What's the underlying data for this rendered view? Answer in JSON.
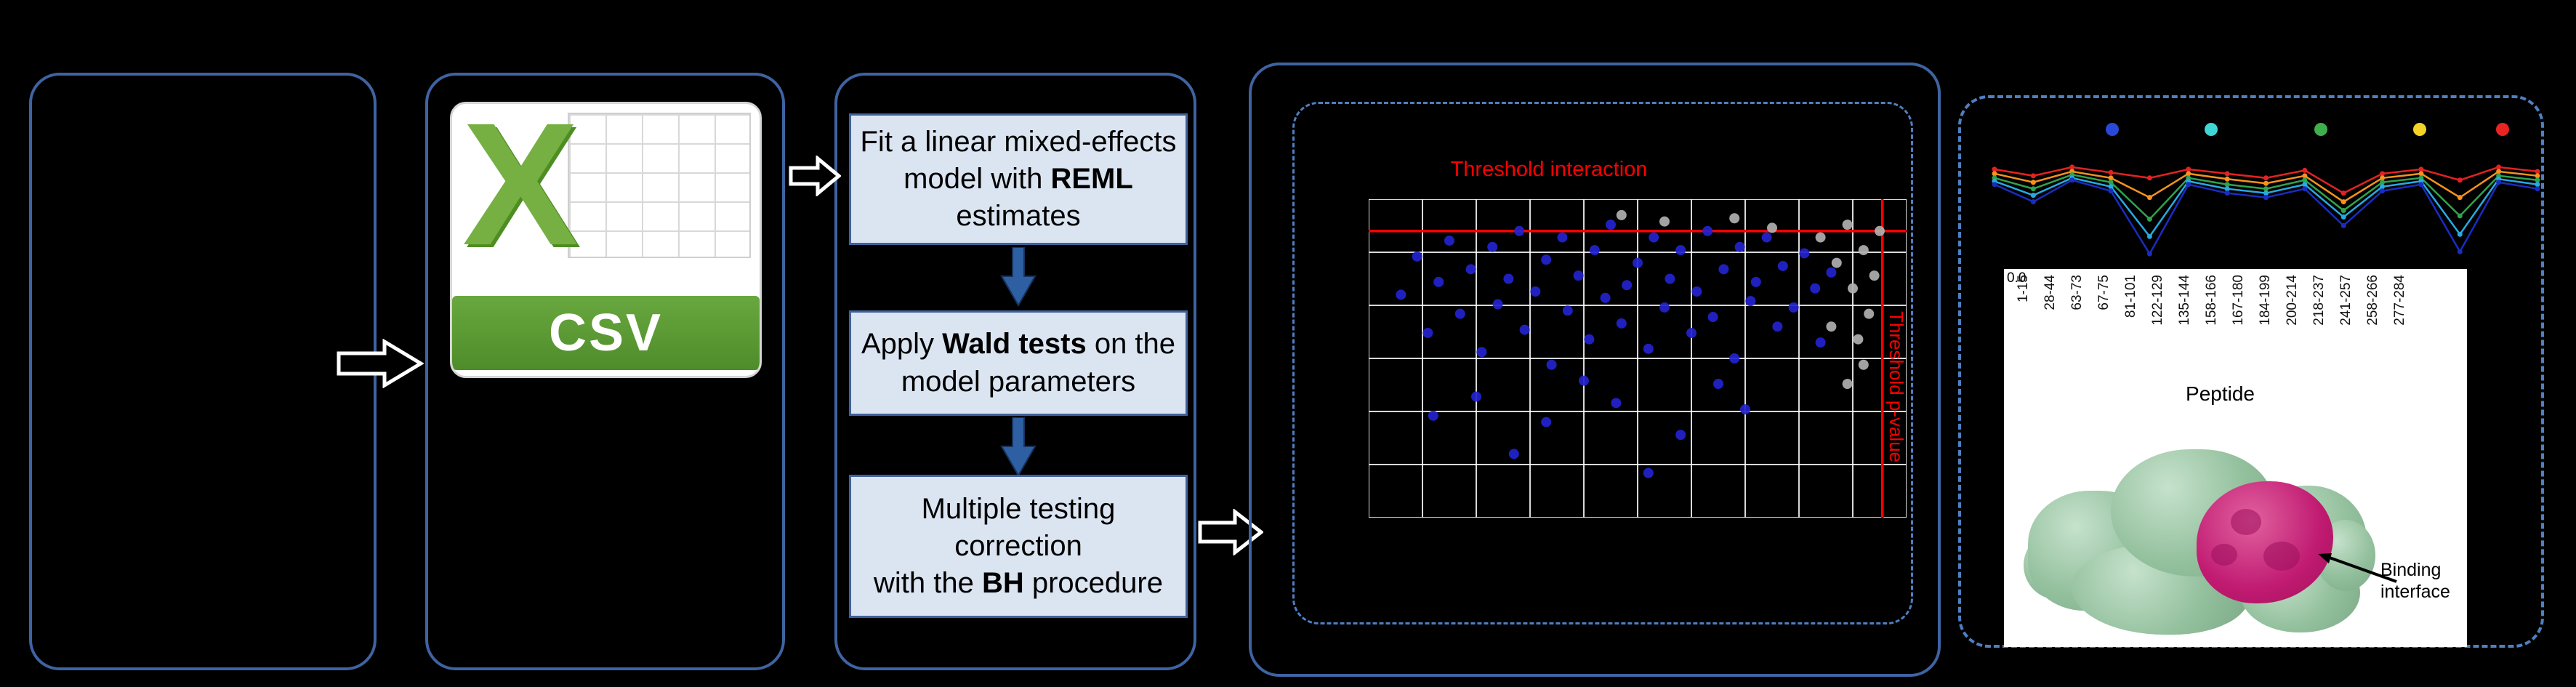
{
  "csv_icon": {
    "letter": "X",
    "label": "CSV"
  },
  "workflow": {
    "steps": [
      {
        "pre": "Fit a linear mixed-effects model with ",
        "bold": "REML",
        "post": " estimates"
      },
      {
        "pre": "Apply ",
        "bold": "Wald tests",
        "post": " on the model parameters"
      },
      {
        "pre": "Multiple testing correction\nwith the ",
        "bold": "BH",
        "post": " procedure"
      }
    ]
  },
  "protein": {
    "binding_label": "Binding interface"
  },
  "chart_data": [
    {
      "type": "scatter",
      "title": "",
      "threshold_h_label": "Threshold interaction",
      "threshold_v_label": "Threshold p-value",
      "threshold_color": "#ff0000",
      "threshold_h_frac": 0.1,
      "threshold_v_frac": 0.955,
      "grid": {
        "cols": 10,
        "rows": 6,
        "color": "#ffffff"
      },
      "series": [
        {
          "name": "significant-points",
          "color": "#2323cf",
          "marker_r": 7,
          "points": [
            [
              0.06,
              0.3
            ],
            [
              0.09,
              0.18
            ],
            [
              0.11,
              0.42
            ],
            [
              0.13,
              0.26
            ],
            [
              0.15,
              0.13
            ],
            [
              0.17,
              0.36
            ],
            [
              0.19,
              0.22
            ],
            [
              0.21,
              0.48
            ],
            [
              0.23,
              0.15
            ],
            [
              0.24,
              0.33
            ],
            [
              0.26,
              0.25
            ],
            [
              0.28,
              0.1
            ],
            [
              0.29,
              0.41
            ],
            [
              0.31,
              0.29
            ],
            [
              0.33,
              0.19
            ],
            [
              0.34,
              0.52
            ],
            [
              0.36,
              0.12
            ],
            [
              0.37,
              0.35
            ],
            [
              0.39,
              0.24
            ],
            [
              0.41,
              0.44
            ],
            [
              0.42,
              0.16
            ],
            [
              0.44,
              0.31
            ],
            [
              0.45,
              0.08
            ],
            [
              0.47,
              0.39
            ],
            [
              0.48,
              0.27
            ],
            [
              0.5,
              0.2
            ],
            [
              0.52,
              0.47
            ],
            [
              0.53,
              0.12
            ],
            [
              0.55,
              0.34
            ],
            [
              0.56,
              0.25
            ],
            [
              0.58,
              0.16
            ],
            [
              0.6,
              0.42
            ],
            [
              0.61,
              0.29
            ],
            [
              0.63,
              0.1
            ],
            [
              0.64,
              0.37
            ],
            [
              0.66,
              0.22
            ],
            [
              0.68,
              0.5
            ],
            [
              0.69,
              0.15
            ],
            [
              0.71,
              0.32
            ],
            [
              0.72,
              0.26
            ],
            [
              0.74,
              0.12
            ],
            [
              0.76,
              0.4
            ],
            [
              0.77,
              0.21
            ],
            [
              0.79,
              0.34
            ],
            [
              0.81,
              0.17
            ],
            [
              0.83,
              0.28
            ],
            [
              0.84,
              0.45
            ],
            [
              0.86,
              0.23
            ],
            [
              0.2,
              0.62
            ],
            [
              0.33,
              0.7
            ],
            [
              0.46,
              0.64
            ],
            [
              0.58,
              0.74
            ],
            [
              0.7,
              0.66
            ],
            [
              0.27,
              0.8
            ],
            [
              0.52,
              0.86
            ],
            [
              0.4,
              0.57
            ],
            [
              0.65,
              0.58
            ],
            [
              0.12,
              0.68
            ]
          ]
        },
        {
          "name": "nonsignificant-points",
          "color": "#b0b0b0",
          "marker_r": 7,
          "points": [
            [
              0.84,
              0.12
            ],
            [
              0.87,
              0.2
            ],
            [
              0.89,
              0.08
            ],
            [
              0.9,
              0.28
            ],
            [
              0.92,
              0.16
            ],
            [
              0.93,
              0.36
            ],
            [
              0.91,
              0.44
            ],
            [
              0.94,
              0.24
            ],
            [
              0.92,
              0.52
            ],
            [
              0.89,
              0.58
            ],
            [
              0.68,
              0.06
            ],
            [
              0.55,
              0.07
            ],
            [
              0.75,
              0.09
            ],
            [
              0.47,
              0.05
            ],
            [
              0.86,
              0.4
            ],
            [
              0.95,
              0.1
            ]
          ]
        }
      ]
    },
    {
      "type": "line",
      "categories": [
        "1-15",
        "28-44",
        "63-73",
        "67-75",
        "81-101",
        "122-129",
        "135-144",
        "158-166",
        "167-180",
        "184-199",
        "200-214",
        "218-237",
        "241-257",
        "258-266",
        "277-284"
      ],
      "x_axis_title": "Peptide",
      "y_tick": "0.0",
      "legend": [
        {
          "name": "blue",
          "color": "#2a48d8",
          "x": 0.22
        },
        {
          "name": "cyan",
          "color": "#3fd6d6",
          "x": 0.4
        },
        {
          "name": "green",
          "color": "#3fae4c",
          "x": 0.6
        },
        {
          "name": "yellow",
          "color": "#f5d327",
          "x": 0.78
        },
        {
          "name": "red",
          "color": "#ea2323",
          "x": 0.93
        }
      ],
      "series": [
        {
          "name": "condition-red",
          "color": "#e32222",
          "values": [
            0.88,
            0.82,
            0.9,
            0.85,
            0.8,
            0.88,
            0.84,
            0.8,
            0.87,
            0.66,
            0.84,
            0.88,
            0.78,
            0.9,
            0.86
          ]
        },
        {
          "name": "condition-orange",
          "color": "#f6921e",
          "values": [
            0.84,
            0.76,
            0.86,
            0.8,
            0.62,
            0.84,
            0.79,
            0.75,
            0.82,
            0.58,
            0.8,
            0.84,
            0.62,
            0.86,
            0.82
          ]
        },
        {
          "name": "condition-green",
          "color": "#2fa34c",
          "values": [
            0.8,
            0.7,
            0.83,
            0.76,
            0.42,
            0.8,
            0.74,
            0.7,
            0.78,
            0.5,
            0.76,
            0.8,
            0.45,
            0.82,
            0.78
          ]
        },
        {
          "name": "condition-lightblue",
          "color": "#27aae1",
          "values": [
            0.77,
            0.64,
            0.8,
            0.72,
            0.26,
            0.77,
            0.7,
            0.66,
            0.74,
            0.44,
            0.72,
            0.77,
            0.28,
            0.79,
            0.74
          ]
        },
        {
          "name": "condition-darkblue",
          "color": "#1b2cc1",
          "values": [
            0.74,
            0.58,
            0.78,
            0.68,
            0.1,
            0.74,
            0.66,
            0.62,
            0.7,
            0.36,
            0.68,
            0.74,
            0.12,
            0.76,
            0.7
          ]
        }
      ]
    }
  ]
}
